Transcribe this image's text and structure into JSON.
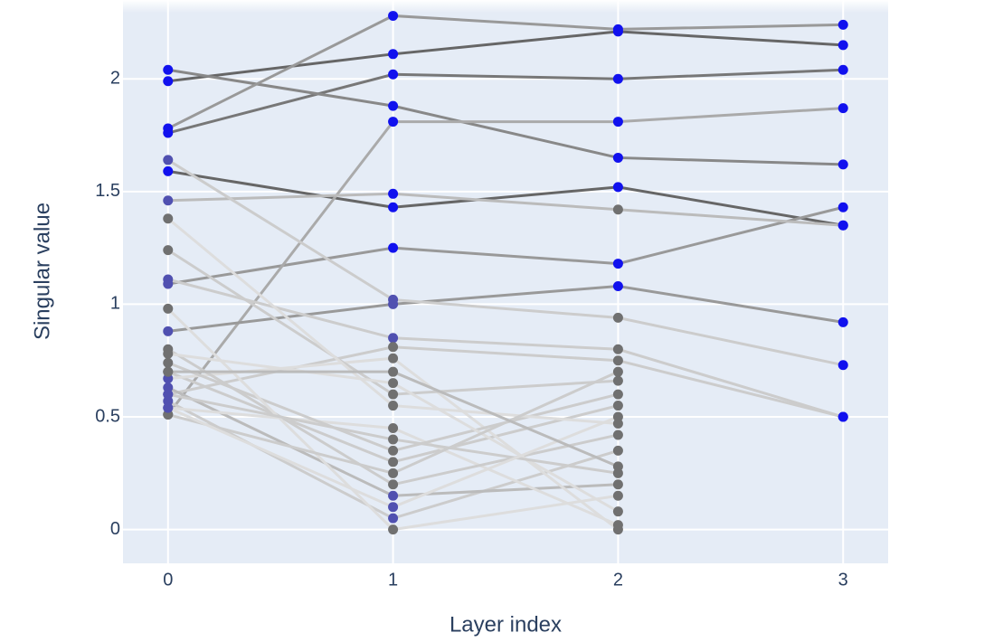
{
  "chart_data": {
    "type": "line",
    "xlabel": "Layer index",
    "ylabel": "Singular value",
    "x": [
      0,
      1,
      2,
      3
    ],
    "xlim": [
      -0.2,
      3.2
    ],
    "xticks": [
      0,
      1,
      2,
      3
    ],
    "ylim": [
      -0.15,
      2.35
    ],
    "yticks": [
      0,
      0.5,
      1,
      1.5,
      2
    ],
    "grid": true,
    "background": "#e5ecf6",
    "series": [
      {
        "color": "#666666",
        "values": [
          1.99,
          2.11,
          2.21,
          2.15
        ],
        "marker_colors": [
          "#1111ee",
          "#1111ee",
          "#1111ee",
          "#1111ee"
        ]
      },
      {
        "color": "#777777",
        "values": [
          1.76,
          2.02,
          2.0,
          2.04
        ],
        "marker_colors": [
          "#1111ee",
          "#1111ee",
          "#1111ee",
          "#1111ee"
        ]
      },
      {
        "color": "#666666",
        "values": [
          1.59,
          1.43,
          1.52,
          1.35
        ],
        "marker_colors": [
          "#1111ee",
          "#1111ee",
          "#1111ee",
          "#1111ee"
        ]
      },
      {
        "color": "#888888",
        "values": [
          2.04,
          1.88,
          1.65,
          1.62
        ],
        "marker_colors": [
          "#1111ee",
          "#1111ee",
          "#1111ee",
          "#1111ee"
        ]
      },
      {
        "color": "#999999",
        "values": [
          1.78,
          2.28,
          2.22,
          2.24
        ],
        "marker_colors": [
          "#1111ee",
          "#1111ee",
          "#1111ee",
          "#1111ee"
        ]
      },
      {
        "color": "#999999",
        "values": [
          1.09,
          1.25,
          1.18,
          1.43
        ],
        "marker_colors": [
          "#5050b0",
          "#1111ee",
          "#1111ee",
          "#1111ee"
        ]
      },
      {
        "color": "#aaaaaa",
        "values": [
          0.51,
          1.81,
          1.81,
          1.87
        ],
        "marker_colors": [
          "#707070",
          "#1111ee",
          "#1111ee",
          "#1111ee"
        ]
      },
      {
        "color": "#bbbbbb",
        "values": [
          1.46,
          1.49,
          1.42,
          1.35
        ],
        "marker_colors": [
          "#5050b0",
          "#1111ee",
          "#707070",
          "#1111ee"
        ]
      },
      {
        "color": "#999999",
        "values": [
          0.88,
          1.0,
          1.08,
          0.92
        ],
        "marker_colors": [
          "#5050b0",
          "#5050b0",
          "#1111ee",
          "#1111ee"
        ]
      },
      {
        "color": "#cccccc",
        "values": [
          1.64,
          1.02,
          0.94,
          0.73
        ],
        "marker_colors": [
          "#5050b0",
          "#5050b0",
          "#707070",
          "#1111ee"
        ]
      },
      {
        "color": "#cccccc",
        "values": [
          1.11,
          0.85,
          0.8,
          0.5
        ],
        "marker_colors": [
          "#5050b0",
          "#5050b0",
          "#707070",
          "#1111ee"
        ]
      },
      {
        "color": "#cccccc",
        "values": [
          0.6,
          0.81,
          0.75,
          0.5
        ],
        "marker_colors": [
          "#5050b0",
          "#707070",
          "#707070",
          "#1111ee"
        ]
      },
      {
        "color": "#cccccc",
        "values": [
          0.57,
          0.05,
          0.35,
          null
        ],
        "marker_colors": [
          "#5050b0",
          "#5050b0",
          "#707070",
          null
        ]
      },
      {
        "color": "#bbbbbb",
        "values": [
          0.63,
          0.15,
          0.2,
          null
        ],
        "marker_colors": [
          "#5050b0",
          "#5050b0",
          "#707070",
          null
        ]
      },
      {
        "color": "#cccccc",
        "values": [
          0.7,
          0.3,
          0.55,
          null
        ],
        "marker_colors": [
          "#707070",
          "#707070",
          "#707070",
          null
        ]
      },
      {
        "color": "#dddddd",
        "values": [
          0.54,
          0.45,
          0.02,
          null
        ],
        "marker_colors": [
          "#5050b0",
          "#707070",
          "#707070",
          null
        ]
      },
      {
        "color": "#dddddd",
        "values": [
          0.67,
          0.76,
          0.0,
          null
        ],
        "marker_colors": [
          "#5050b0",
          "#707070",
          "#707070",
          null
        ]
      },
      {
        "color": "#cccccc",
        "values": [
          1.24,
          0.6,
          0.66,
          null
        ],
        "marker_colors": [
          "#707070",
          "#707070",
          "#707070",
          null
        ]
      },
      {
        "color": "#cccccc",
        "values": [
          0.8,
          0.2,
          0.42,
          null
        ],
        "marker_colors": [
          "#707070",
          "#707070",
          "#707070",
          null
        ]
      },
      {
        "color": "#cccccc",
        "values": [
          0.74,
          0.35,
          0.6,
          null
        ],
        "marker_colors": [
          "#707070",
          "#707070",
          "#707070",
          null
        ]
      },
      {
        "color": "#dddddd",
        "values": [
          0.98,
          0.0,
          0.15,
          null
        ],
        "marker_colors": [
          "#707070",
          "#707070",
          "#707070",
          null
        ]
      },
      {
        "color": "#dddddd",
        "values": [
          1.38,
          0.55,
          0.47,
          null
        ],
        "marker_colors": [
          "#707070",
          "#707070",
          "#707070",
          null
        ]
      },
      {
        "color": "#dddddd",
        "values": [
          0.78,
          0.65,
          0.08,
          null
        ],
        "marker_colors": [
          "#707070",
          "#707070",
          "#707070",
          null
        ]
      },
      {
        "color": "#cccccc",
        "values": [
          0.51,
          0.25,
          0.7,
          null
        ],
        "marker_colors": [
          "#707070",
          "#707070",
          "#707070",
          null
        ]
      },
      {
        "color": "#cccccc",
        "values": [
          0.6,
          0.4,
          0.25,
          null
        ],
        "marker_colors": [
          "#5050b0",
          "#707070",
          "#707070",
          null
        ]
      },
      {
        "color": "#dddddd",
        "values": [
          0.54,
          0.1,
          0.5,
          null
        ],
        "marker_colors": [
          "#5050b0",
          "#5050b0",
          "#707070",
          null
        ]
      },
      {
        "color": "#bbbbbb",
        "values": [
          0.7,
          0.7,
          0.28,
          null
        ],
        "marker_colors": [
          "#707070",
          "#707070",
          "#707070",
          null
        ]
      }
    ]
  }
}
